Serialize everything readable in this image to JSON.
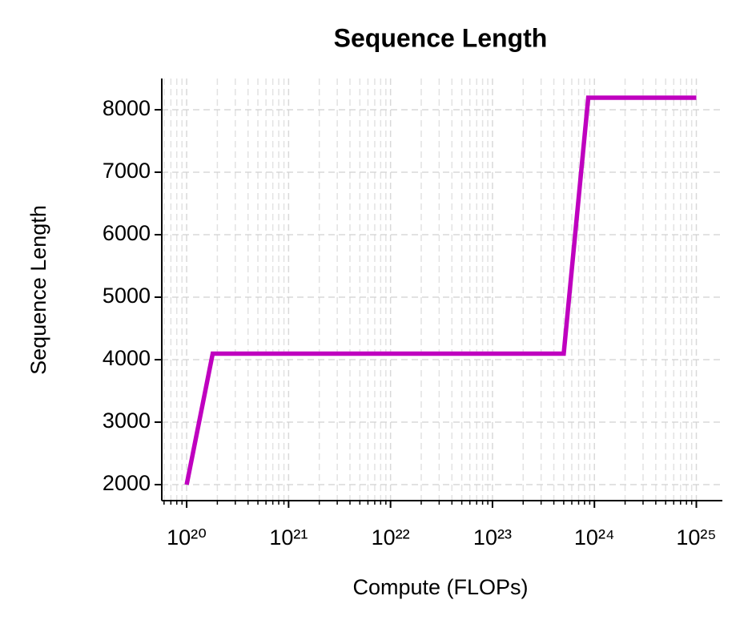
{
  "chart_data": {
    "type": "line",
    "title": "Sequence Length",
    "x_label": "Compute (FLOPs)",
    "y_label": "Sequence Length",
    "x": [
      1e+20,
      1.8e+20,
      5e+23,
      8.7e+23,
      1e+25
    ],
    "values": [
      2000,
      4096,
      4096,
      8192,
      8192
    ],
    "color": "#bf00bf",
    "x_log": true,
    "xlim": [
      5.7e+19,
      1.8e+25
    ],
    "xticks": [
      {
        "value": 1e+20,
        "label": "10²⁰"
      },
      {
        "value": 1e+21,
        "label": "10²¹"
      },
      {
        "value": 1e+22,
        "label": "10²²"
      },
      {
        "value": 1e+23,
        "label": "10²³"
      },
      {
        "value": 1e+24,
        "label": "10²⁴"
      },
      {
        "value": 1e+25,
        "label": "10²⁵"
      }
    ],
    "ylim": [
      1744,
      8500
    ],
    "yticks": [
      2000,
      3000,
      4000,
      5000,
      6000,
      7000,
      8000
    ],
    "grid": true,
    "minor_grid": true
  }
}
